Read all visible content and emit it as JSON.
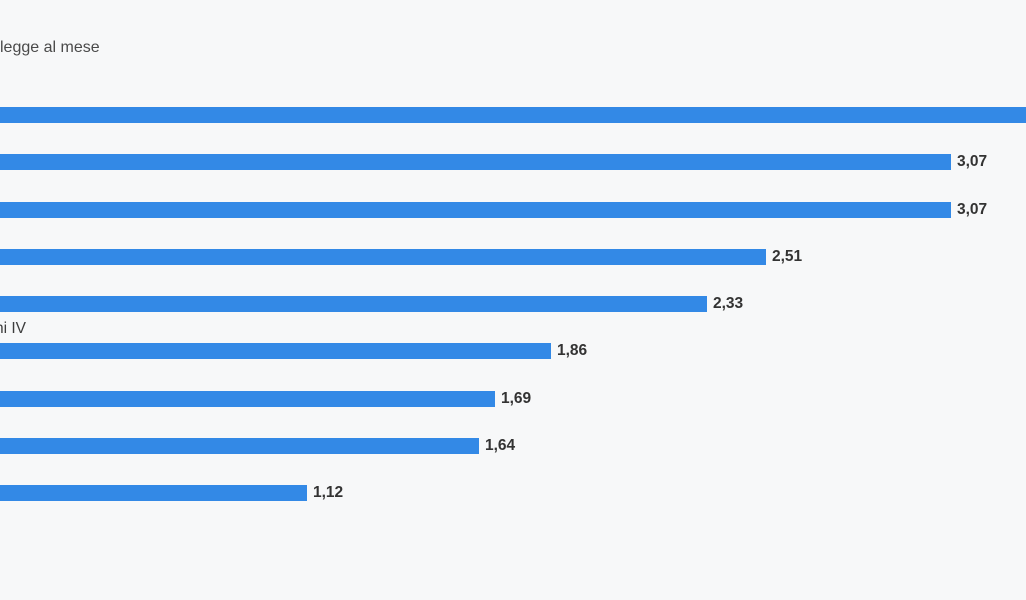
{
  "page": {
    "background_color": "#f7f8f9"
  },
  "header": {
    "title_fragment": "legge al mese"
  },
  "chart_data": {
    "type": "bar",
    "orientation": "horizontal",
    "title": "legge al mese",
    "title_note": "title cropped at left edge of screenshot",
    "xlabel": "",
    "ylabel": "",
    "gridlines": false,
    "legend": false,
    "axes_visible": false,
    "bar_color": "#3389e6",
    "value_label_color": "#333333",
    "category_label_fragment": "ni IV",
    "bars": [
      {
        "category": "",
        "value": null,
        "value_display": "",
        "clipped_right": true
      },
      {
        "category": "",
        "value": 3.07,
        "value_display": "3,07"
      },
      {
        "category": "",
        "value": 3.07,
        "value_display": "3,07"
      },
      {
        "category": "",
        "value": 2.51,
        "value_display": "2,51"
      },
      {
        "category": "",
        "value": 2.33,
        "value_display": "2,33"
      },
      {
        "category": "ni IV",
        "value": 1.86,
        "value_display": "1,86"
      },
      {
        "category": "",
        "value": 1.69,
        "value_display": "1,69"
      },
      {
        "category": "",
        "value": 1.64,
        "value_display": "1,64"
      },
      {
        "category": "",
        "value": 1.12,
        "value_display": "1,12"
      }
    ]
  }
}
